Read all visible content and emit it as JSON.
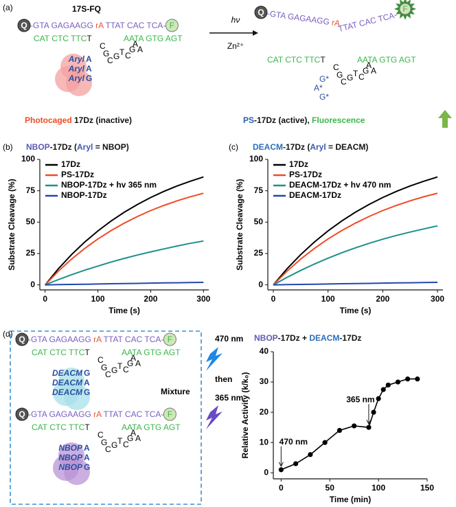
{
  "labels": {
    "a": "(a)",
    "b": "(b)",
    "c": "(c)",
    "d": "(d)"
  },
  "panel_a": {
    "construct": "17S-FQ",
    "caged": {
      "q": "Q",
      "s1": "-GTA GAGAAGG ",
      "ra": "rA",
      "s2": " TTAT CAC TCA-",
      "f": "F",
      "e1": "CAT CTC TTC",
      "t": "T",
      "e2": "AATA GTG AGT",
      "loop": [
        "C",
        "G",
        "C",
        "G",
        "T",
        "C",
        "G",
        "A",
        "A"
      ],
      "caps": [
        {
          "tag": "Aryl",
          "base": "A"
        },
        {
          "tag": "Aryl",
          "base": "A"
        },
        {
          "tag": "Aryl",
          "base": "G"
        }
      ]
    },
    "light": "hν",
    "metal": "Zn²⁺",
    "cleaved": {
      "q": "Q",
      "s1": "-GTA GAGAAGG ",
      "ra": "rA",
      "s2": "TTAT CAC TCA-",
      "f": "F",
      "e1": "CAT CTC TTC",
      "t": "T",
      "e2": "AATA GTG AGT",
      "loop": [
        "C",
        "G",
        "C",
        "G",
        "T",
        "C",
        "G",
        "A",
        "A"
      ],
      "caps": [
        "G*",
        "A*",
        "G*"
      ]
    },
    "caption_left": [
      "Photocaged",
      " 17Dz (inactive)"
    ],
    "caption_left_colors": [
      "#f04a23",
      "#111111"
    ],
    "caption_right": [
      "PS",
      "-17Dz (active), ",
      "Fluorescence"
    ],
    "caption_right_colors": [
      "#2a5db0",
      "#111111",
      "#3cb54a"
    ]
  },
  "panel_d": {
    "mix_1": {
      "q": "Q",
      "s1": "-GTA GAGAAGG ",
      "ra": "rA",
      "s2": " TTAT CAC TCA-",
      "f": "F",
      "e1": "CAT CTC TTC",
      "t": "T",
      "e2": "AATA GTG AGT",
      "loop": [
        "C",
        "G",
        "C",
        "G",
        "T",
        "C",
        "G",
        "A",
        "A"
      ],
      "caps": [
        {
          "tag": "DEACM",
          "base": "G"
        },
        {
          "tag": "DEACM",
          "base": "A"
        },
        {
          "tag": "DEACM",
          "base": "G"
        }
      ]
    },
    "mix_2": {
      "q": "Q",
      "s1": "-GTA GAGAAGG ",
      "ra": "rA",
      "s2": " TTAT CAC TCA-",
      "f": "F",
      "e1": "CAT CTC TTC",
      "t": "T",
      "e2": "AATA GTG AGT",
      "loop": [
        "C",
        "G",
        "C",
        "G",
        "T",
        "C",
        "G",
        "A",
        "A"
      ],
      "caps": [
        {
          "tag": "NBOP",
          "base": "A"
        },
        {
          "tag": "NBOP",
          "base": "A"
        },
        {
          "tag": "NBOP",
          "base": "G"
        }
      ]
    },
    "light_1": "470 nm",
    "then": "then",
    "light_2": "365 nm",
    "mixture": "Mixture"
  },
  "chart_data": [
    {
      "type": "line",
      "title": [
        "NBOP",
        "-17Dz (",
        "Aryl",
        " = NBOP)"
      ],
      "title_colors": [
        "#5b5bb5",
        "#111111",
        "#3f58b5",
        "#111111"
      ],
      "x_label": "Time (s)",
      "y_label": "Substrate Cleavage (%)",
      "x": [
        0,
        25,
        50,
        75,
        100,
        125,
        150,
        175,
        200,
        225,
        250,
        275,
        300
      ],
      "series": [
        {
          "name": "17Dz",
          "color": "#000000",
          "values": [
            0,
            12.8,
            24.1,
            34.1,
            43,
            50.9,
            57.9,
            64.1,
            69.6,
            74.5,
            78.8,
            82.6,
            86
          ]
        },
        {
          "name": "PS-17Dz",
          "color": "#f04a23",
          "values": [
            0,
            10.9,
            20.5,
            29,
            36.6,
            43.3,
            49.2,
            54.5,
            59.2,
            63.3,
            67,
            70.2,
            73
          ]
        },
        {
          "name": "NBOP-17Dz + hv 365 nm",
          "color": "#1b8f8a",
          "values": [
            0,
            4.2,
            8.1,
            11.7,
            15,
            18.2,
            21.1,
            23.8,
            26.3,
            28.7,
            31,
            33.1,
            35
          ]
        },
        {
          "name": "NBOP-17Dz",
          "color": "#2346a8",
          "values": [
            0,
            0.2,
            0.4,
            0.5,
            0.7,
            0.9,
            1.1,
            1.2,
            1.4,
            1.6,
            1.7,
            1.9,
            2
          ]
        }
      ],
      "xlim": [
        -10,
        310
      ],
      "xticks": [
        0,
        100,
        200,
        300
      ],
      "ylim": [
        -4,
        100
      ],
      "yticks": [
        0,
        25,
        50,
        75,
        100
      ],
      "legend": "upper left"
    },
    {
      "type": "line",
      "title": [
        "DEACM",
        "-17Dz (",
        "Aryl",
        " = DEACM)"
      ],
      "title_colors": [
        "#2a6ebb",
        "#111111",
        "#3f58b5",
        "#111111"
      ],
      "x_label": "Time (s)",
      "y_label": "Substrate Cleavage (%)",
      "x": [
        0,
        25,
        50,
        75,
        100,
        125,
        150,
        175,
        200,
        225,
        250,
        275,
        300
      ],
      "series": [
        {
          "name": "17Dz",
          "color": "#000000",
          "values": [
            0,
            12.8,
            24.1,
            34.1,
            43,
            50.9,
            57.9,
            64.1,
            69.6,
            74.5,
            78.8,
            82.6,
            86
          ]
        },
        {
          "name": "PS-17Dz",
          "color": "#f04a23",
          "values": [
            0,
            10.9,
            20.5,
            29,
            36.6,
            43.3,
            49.2,
            54.5,
            59.2,
            63.3,
            67,
            70.2,
            73
          ]
        },
        {
          "name": "DEACM-17Dz + hv 470 nm",
          "color": "#1b8f8a",
          "values": [
            0,
            6,
            11.5,
            16.6,
            21.3,
            25.6,
            29.5,
            33.1,
            36.4,
            39.4,
            42.1,
            44.6,
            47
          ]
        },
        {
          "name": "DEACM-17Dz",
          "color": "#2346a8",
          "values": [
            0,
            0.2,
            0.4,
            0.5,
            0.7,
            0.9,
            1.1,
            1.2,
            1.4,
            1.6,
            1.7,
            1.9,
            2
          ]
        }
      ],
      "xlim": [
        -10,
        310
      ],
      "xticks": [
        0,
        100,
        200,
        300
      ],
      "ylim": [
        -4,
        100
      ],
      "yticks": [
        0,
        25,
        50,
        75,
        100
      ],
      "legend": "upper left"
    },
    {
      "type": "line",
      "markers": true,
      "title": [
        "NBOP",
        "-17Dz + ",
        "DEACM",
        "-17Dz"
      ],
      "title_colors": [
        "#5b5bb5",
        "#111111",
        "#2a6ebb",
        "#111111"
      ],
      "x_label": "Time (min)",
      "y_label": "Relative Activity (k/k₀)",
      "x": [
        0,
        15,
        30,
        45,
        60,
        75,
        90,
        95,
        100,
        105,
        110,
        120,
        130,
        140
      ],
      "series": [
        {
          "color": "#000000",
          "values": [
            1,
            3,
            6,
            10,
            14,
            15.5,
            15,
            20,
            24.5,
            27.5,
            29,
            30,
            31,
            31
          ]
        }
      ],
      "annotations": [
        "470 nm",
        "365 nm"
      ],
      "xlim": [
        -8,
        150
      ],
      "xticks": [
        0,
        50,
        100,
        150
      ],
      "ylim": [
        -2,
        40
      ],
      "yticks": [
        0,
        10,
        20,
        30,
        40
      ]
    }
  ]
}
